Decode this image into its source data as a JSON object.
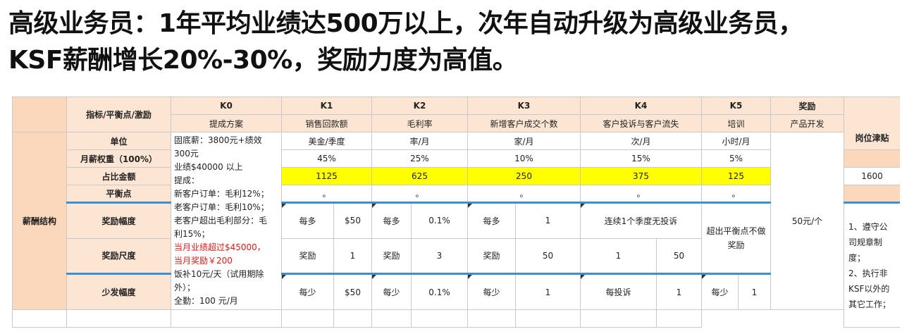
{
  "heading": {
    "line1": "高级业务员：1年平均业绩达500万以上，次年自动升级为高级业务员，",
    "line2": "KSF薪酬增长20%-30%，奖励力度为高值。"
  },
  "table": {
    "corner": "指标/平衡点/激励",
    "k_codes": [
      "K0",
      "K1",
      "K2",
      "K3",
      "K4",
      "K5"
    ],
    "reward_head": "奖励",
    "k_names": [
      "提成方案",
      "销售回款额",
      "毛利率",
      "新增客户成交个数",
      "客户投诉与客户流失",
      "培训"
    ],
    "reward_name": "产品开发",
    "post_allowance": "岗位津贴",
    "row_labels": {
      "unit": "单位",
      "weight": "月薪权重（100%）",
      "amount": "占比金额",
      "balance": "平衡点",
      "incentive": "奖励幅度",
      "scale": "奖励尺度",
      "penalty": "少发幅度"
    },
    "section_label": "薪酬结构",
    "k0_desc": {
      "l1": "固底薪：3800元+绩效",
      "l2": "300元",
      "l3": "业绩$40000 以上",
      "l4": "提成：",
      "l5": "新客户订单：毛利12%；",
      "l6": "老客户订单：毛利10%；",
      "l7": "老客户超出毛利部分：毛",
      "l8": "利15%；",
      "l9": "当月业绩超过$45000，",
      "l10": "当月奖励￥200",
      "l11": "饭补10元/天（试用期除",
      "l12": "外）；",
      "l13": "全勤：100 元/月"
    },
    "units": [
      "美金/季度",
      "率/月",
      "家/月",
      "次/月",
      "小时/月"
    ],
    "weights": [
      "45%",
      "25%",
      "10%",
      "15%",
      "5%"
    ],
    "amounts": [
      "1125",
      "625",
      "250",
      "375",
      "125"
    ],
    "allowance_amount": "1600",
    "balance_mark": "。",
    "incentive": {
      "k1": [
        "每多",
        "$50"
      ],
      "k2": [
        "每多",
        "0.1%"
      ],
      "k3": [
        "每多",
        "1"
      ],
      "k4": "连续1个季度无投诉",
      "k5": "超出平衡点不做奖励"
    },
    "scale": {
      "k1": [
        "奖励",
        "1"
      ],
      "k2": [
        "奖励",
        "3"
      ],
      "k3": [
        "奖励",
        "50"
      ],
      "k4": [
        "1",
        "50"
      ]
    },
    "reward_value": "50元/个",
    "penalty": {
      "k1": [
        "每少",
        "$50"
      ],
      "k2": [
        "每少",
        "0.1%"
      ],
      "k3": [
        "每少",
        "1"
      ],
      "k4": [
        "每投诉",
        "1"
      ],
      "k5": [
        "每少",
        "1"
      ]
    },
    "allowance_note": {
      "l1": "1、遵守公司规章制度；",
      "l2": "2、执行非KSF以外的其它工作；"
    }
  }
}
